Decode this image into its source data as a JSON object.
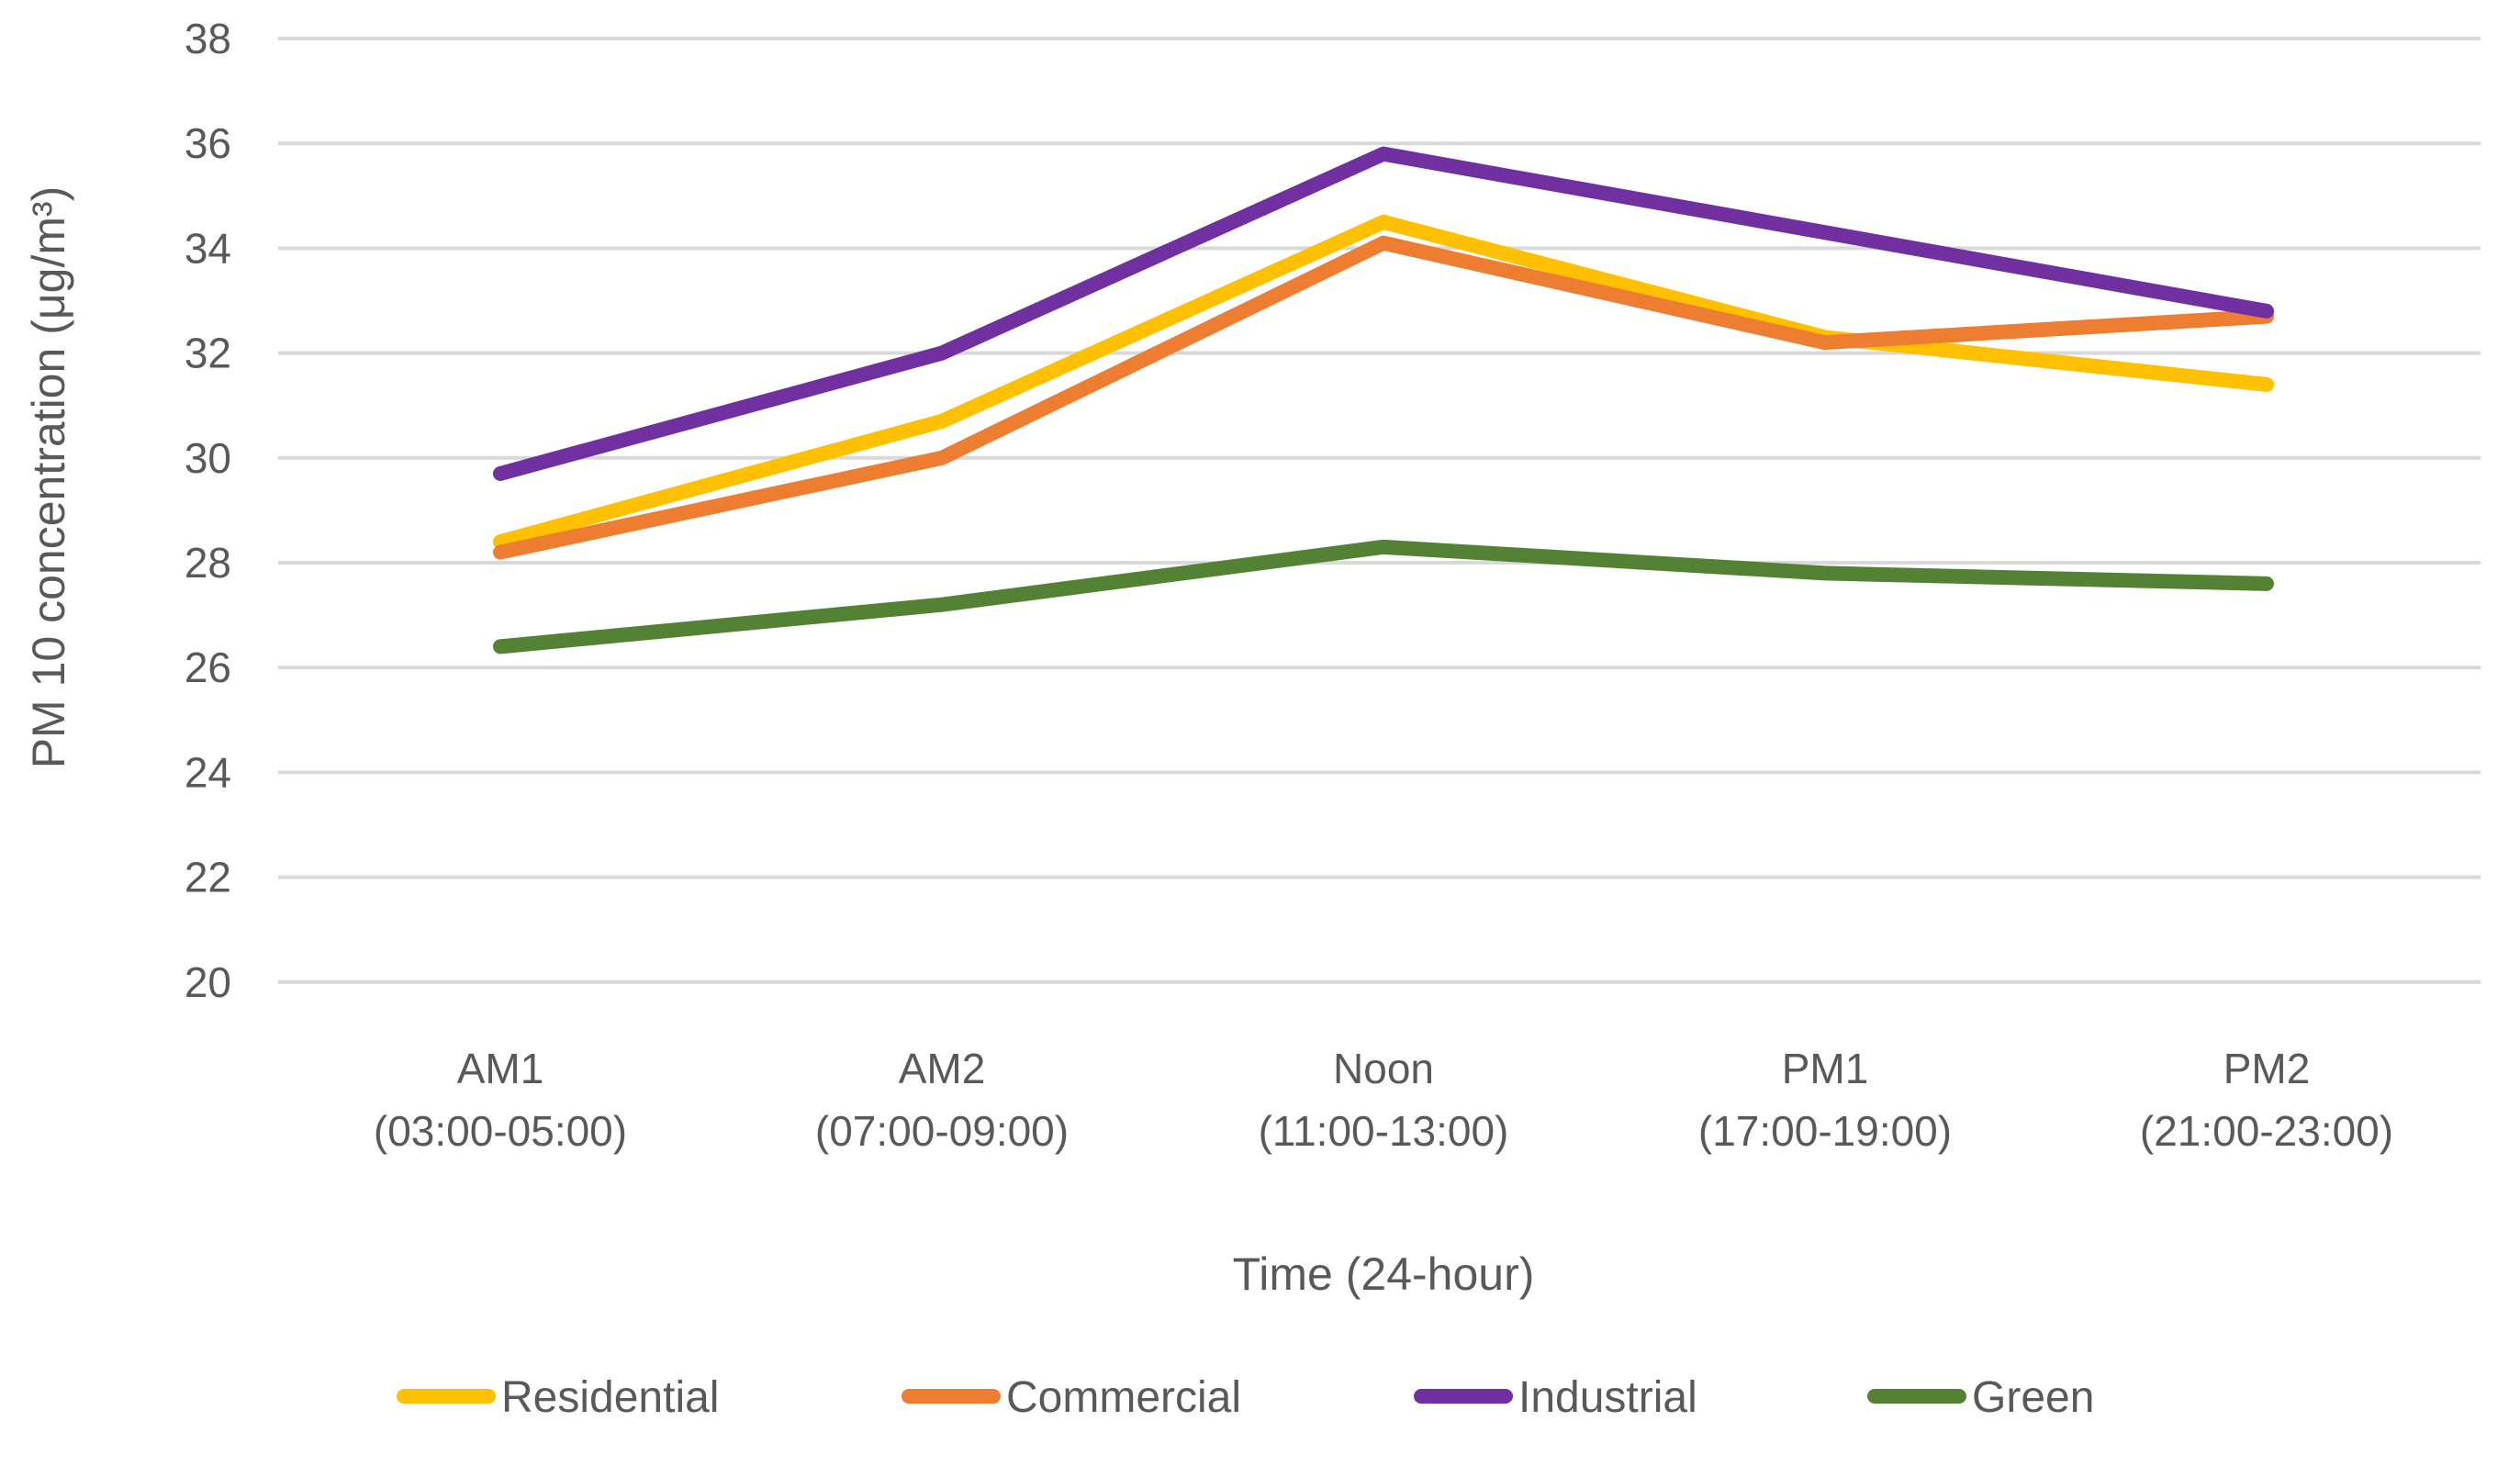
{
  "chart_data": {
    "type": "line",
    "title": "",
    "xlabel": "Time (24-hour)",
    "ylabel": "PM 10 concentration (μg/m³)",
    "ylim": [
      20,
      38
    ],
    "ytick_step": 2,
    "grid": "horizontal-only",
    "legend_position": "bottom",
    "background": "#FFFFFF",
    "gridline_color": "#D9D9D9",
    "axis_text_color": "#595959",
    "categories": [
      {
        "label": "AM1",
        "sublabel": "(03:00-05:00)"
      },
      {
        "label": "AM2",
        "sublabel": "(07:00-09:00)"
      },
      {
        "label": "Noon",
        "sublabel": "(11:00-13:00)"
      },
      {
        "label": "PM1",
        "sublabel": "(17:00-19:00)"
      },
      {
        "label": "PM2",
        "sublabel": "(21:00-23:00)"
      }
    ],
    "series": [
      {
        "name": "Residential",
        "color": "#FFC000",
        "values": [
          28.4,
          30.7,
          34.5,
          32.3,
          31.4
        ]
      },
      {
        "name": "Commercial",
        "color": "#ED7D31",
        "values": [
          28.2,
          30.0,
          34.1,
          32.2,
          32.7
        ]
      },
      {
        "name": "Industrial",
        "color": "#7030A0",
        "values": [
          29.7,
          32.0,
          35.8,
          34.3,
          32.8
        ]
      },
      {
        "name": "Green",
        "color": "#548235",
        "values": [
          26.4,
          27.2,
          28.3,
          27.8,
          27.6
        ]
      }
    ]
  }
}
